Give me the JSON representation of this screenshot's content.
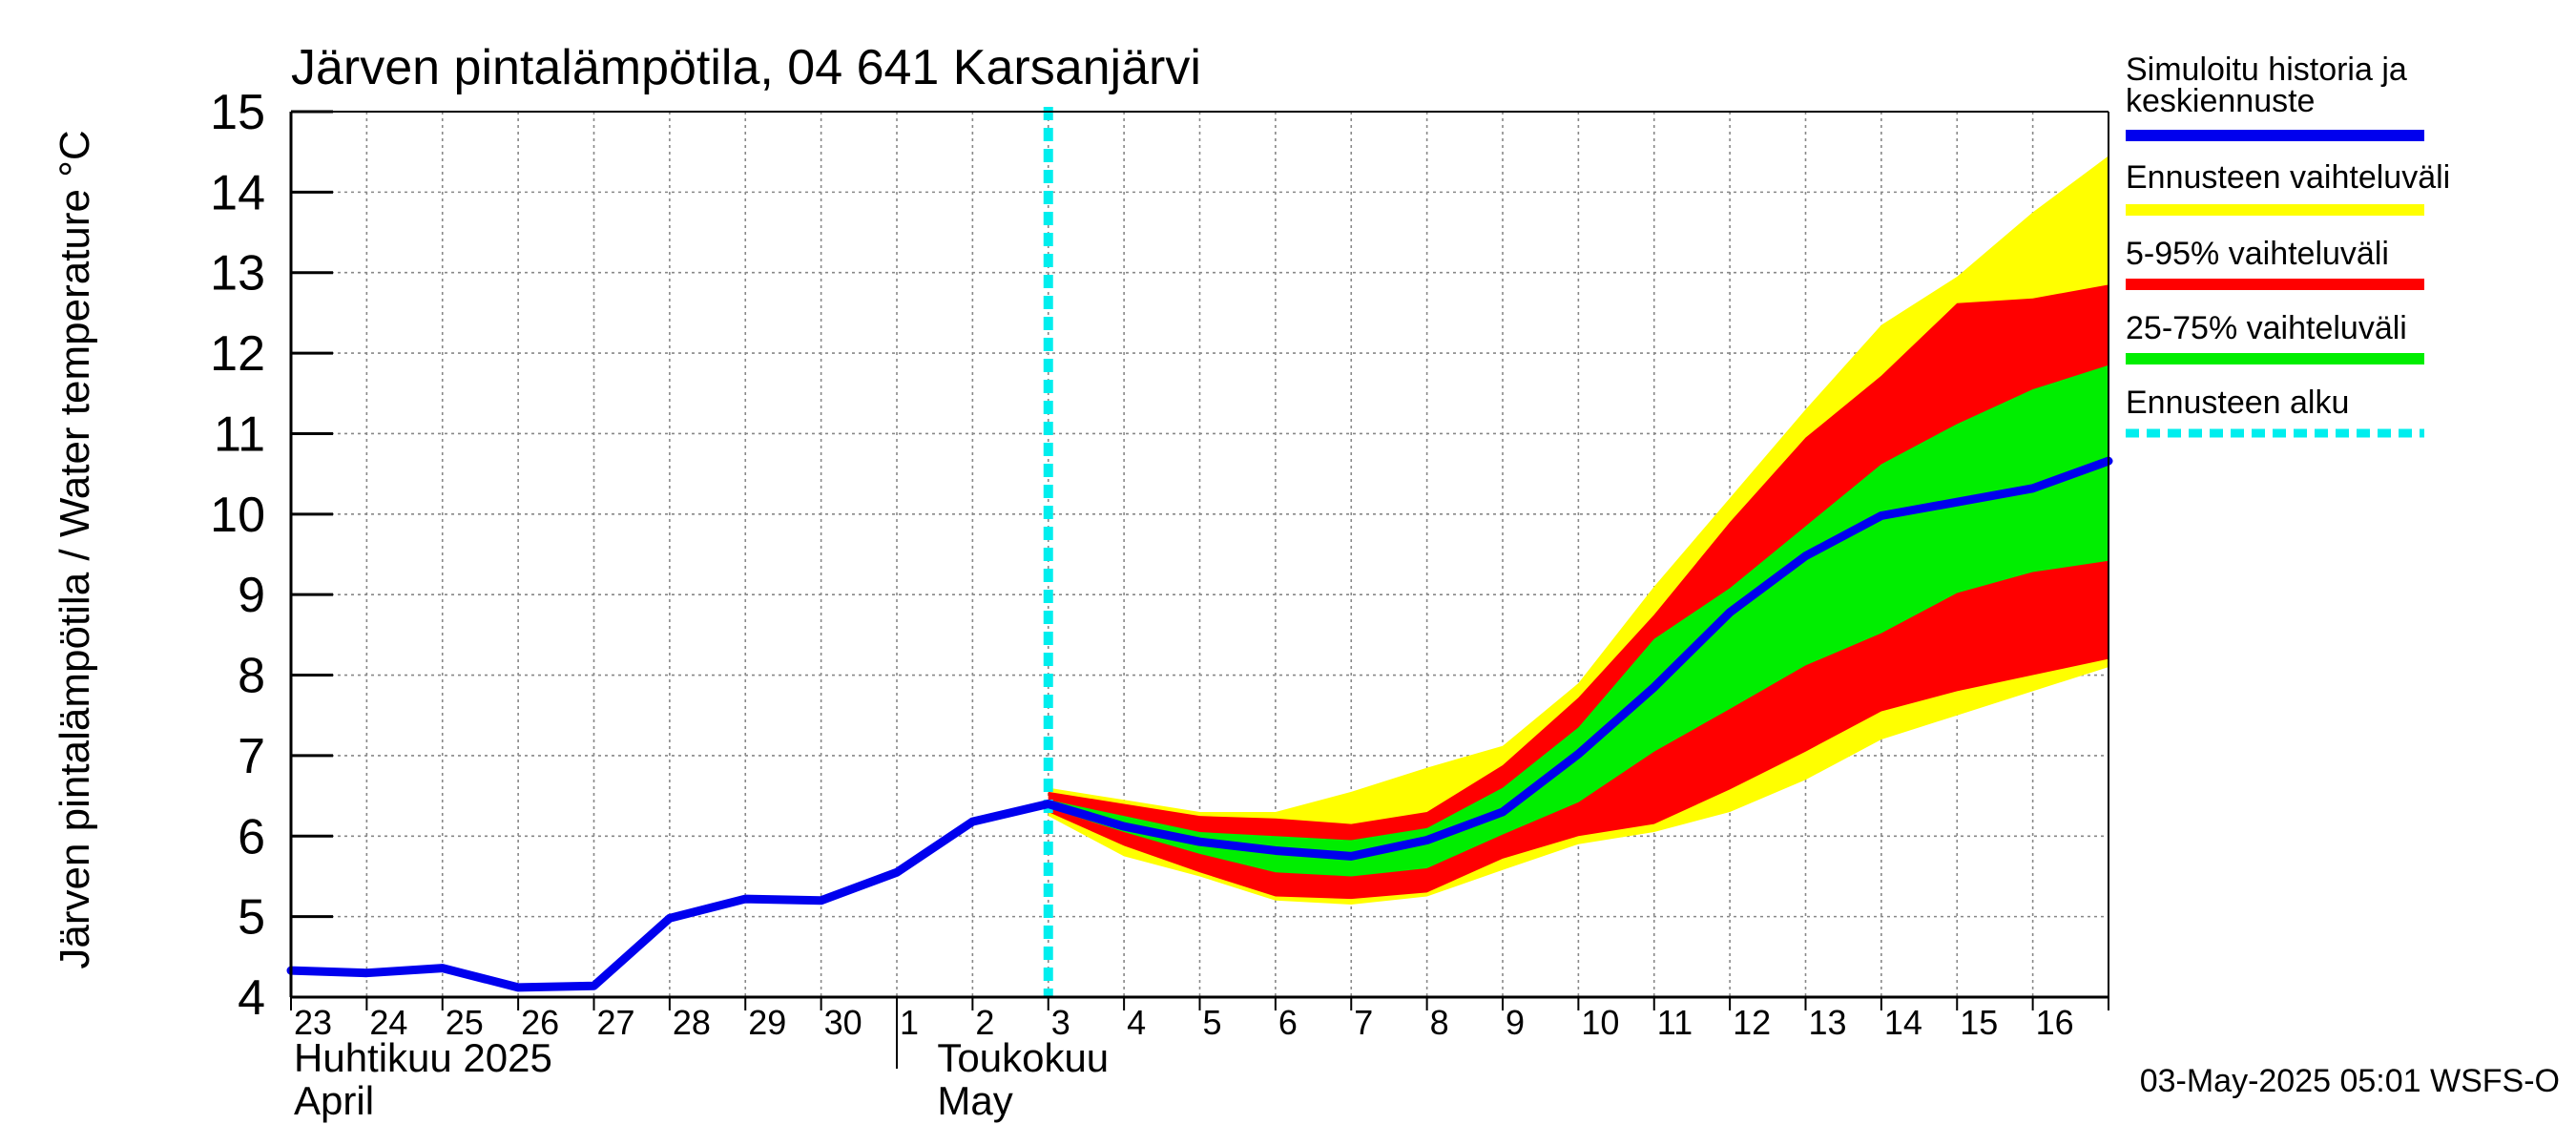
{
  "chart_data": {
    "type": "area",
    "title": "Järven pintalämpötila, 04 641 Karsanjärvi",
    "ylabel": "Järven pintalämpötila / Water temperature °C",
    "xlabel": "",
    "ylim": [
      4,
      15
    ],
    "yticks": [
      "4",
      "5",
      "6",
      "7",
      "8",
      "9",
      "10",
      "11",
      "12",
      "13",
      "14",
      "15"
    ],
    "xlim": [
      0,
      24
    ],
    "x_tick_labels": [
      "23",
      "24",
      "25",
      "26",
      "27",
      "28",
      "29",
      "30",
      "1",
      "2",
      "3",
      "4",
      "5",
      "6",
      "7",
      "8",
      "9",
      "10",
      "11",
      "12",
      "13",
      "14",
      "15",
      "16"
    ],
    "month_labels": [
      {
        "fi": "Huhtikuu  2025",
        "en": "April"
      },
      {
        "fi": "Toukokuu",
        "en": "May"
      }
    ],
    "grid": true,
    "legend_position": "right",
    "forecast_start_index": 10,
    "series": [
      {
        "name": "Simuloitu historia ja keskiennuste",
        "color": "#0000ee",
        "values": [
          4.33,
          4.3,
          4.36,
          4.12,
          4.14,
          4.98,
          5.22,
          5.2,
          5.55,
          6.18,
          6.4,
          6.12,
          5.93,
          5.82,
          5.75,
          5.95,
          6.3,
          7.02,
          7.85,
          8.78,
          9.48,
          9.98,
          10.15,
          10.32,
          10.66
        ]
      }
    ],
    "bands": [
      {
        "name": "Ennusteen vaihteluväli",
        "color": "#ffff00",
        "x_start": 10,
        "upper": [
          6.6,
          6.45,
          6.3,
          6.3,
          6.55,
          6.85,
          7.12,
          7.9,
          9.1,
          10.2,
          11.3,
          12.35,
          12.95,
          13.75,
          14.45
        ],
        "lower": [
          6.25,
          5.75,
          5.5,
          5.2,
          5.15,
          5.25,
          5.58,
          5.9,
          6.05,
          6.3,
          6.7,
          7.2,
          7.5,
          7.8,
          8.1
        ]
      },
      {
        "name": "5-95% vaihteluväli",
        "color": "#ff0000",
        "x_start": 10,
        "upper": [
          6.55,
          6.4,
          6.25,
          6.22,
          6.15,
          6.3,
          6.88,
          7.72,
          8.75,
          9.9,
          10.95,
          11.72,
          12.62,
          12.68,
          12.85
        ],
        "lower": [
          6.3,
          5.88,
          5.55,
          5.25,
          5.22,
          5.3,
          5.72,
          6.0,
          6.15,
          6.58,
          7.05,
          7.55,
          7.8,
          8.0,
          8.2
        ]
      },
      {
        "name": "25-75% vaihteluväli",
        "color": "#00ee00",
        "x_start": 10,
        "upper": [
          6.45,
          6.25,
          6.05,
          6.0,
          5.95,
          6.1,
          6.6,
          7.35,
          8.45,
          9.08,
          9.85,
          10.62,
          11.12,
          11.55,
          11.85
        ],
        "lower": [
          6.35,
          6.05,
          5.78,
          5.55,
          5.5,
          5.6,
          6.02,
          6.42,
          7.05,
          7.58,
          8.12,
          8.52,
          9.02,
          9.28,
          9.42
        ]
      }
    ],
    "forecast_line": {
      "name": "Ennusteen alku",
      "color": "#00eeee",
      "x": 10
    }
  },
  "legend": {
    "items": [
      {
        "label": "Simuloitu historia ja",
        "label2": "keskiennuste",
        "color": "#0000ee",
        "style": "solid"
      },
      {
        "label": "Ennusteen vaihteluväli",
        "label2": "",
        "color": "#ffff00",
        "style": "solid"
      },
      {
        "label": "5-95% vaihteluväli",
        "label2": "",
        "color": "#ff0000",
        "style": "solid"
      },
      {
        "label": "25-75% vaihteluväli",
        "label2": "",
        "color": "#00ee00",
        "style": "solid"
      },
      {
        "label": "Ennusteen alku",
        "label2": "",
        "color": "#00eeee",
        "style": "dashed"
      }
    ]
  },
  "footer": {
    "timestamp": "03-May-2025 05:01 WSFS-O"
  }
}
